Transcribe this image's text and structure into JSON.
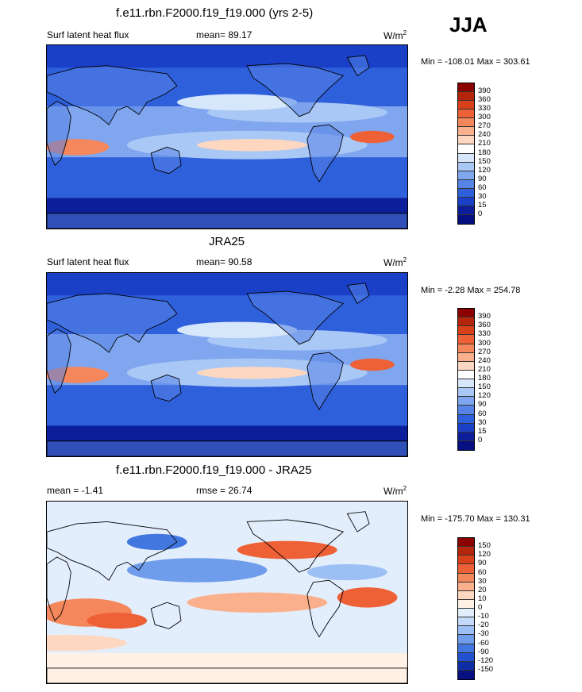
{
  "season": "JJA",
  "panels": [
    {
      "title": "f.e11.rbn.F2000.f19_f19.000 (yrs 2-5)",
      "left_label": "Surf latent heat flux",
      "mean_text": "mean=  89.17",
      "units": "W/m",
      "units_sup": "2",
      "minmax": "Min = -108.01 Max = 303.61",
      "colorbar": {
        "labels": [
          "390",
          "360",
          "330",
          "300",
          "270",
          "240",
          "210",
          "180",
          "150",
          "120",
          "90",
          "60",
          "30",
          "15",
          "0"
        ],
        "colors": [
          "#8b0000",
          "#b3260c",
          "#d8401a",
          "#ee6035",
          "#f5875c",
          "#fab08c",
          "#fdd7c0",
          "#ffffff",
          "#d6e6fb",
          "#aac8f5",
          "#7fa6ee",
          "#5584e6",
          "#2f60dc",
          "#1a40c8",
          "#0c1e9a",
          "#061080"
        ]
      },
      "map_kind": "flux"
    },
    {
      "title": "JRA25",
      "left_label": "Surf latent heat flux",
      "mean_text": "mean=  90.58",
      "units": "W/m",
      "units_sup": "2",
      "minmax": "Min =  -2.28 Max = 254.78",
      "colorbar": {
        "labels": [
          "390",
          "360",
          "330",
          "300",
          "270",
          "240",
          "210",
          "180",
          "150",
          "120",
          "90",
          "60",
          "30",
          "15",
          "0"
        ],
        "colors": [
          "#8b0000",
          "#b3260c",
          "#d8401a",
          "#ee6035",
          "#f5875c",
          "#fab08c",
          "#fdd7c0",
          "#ffffff",
          "#d6e6fb",
          "#aac8f5",
          "#7fa6ee",
          "#5584e6",
          "#2f60dc",
          "#1a40c8",
          "#0c1e9a",
          "#061080"
        ]
      },
      "map_kind": "flux"
    },
    {
      "title": "f.e11.rbn.F2000.f19_f19.000 - JRA25",
      "left_label": "mean =  -1.41",
      "mean_text": "rmse =  26.74",
      "units": "W/m",
      "units_sup": "2",
      "minmax": "Min = -175.70 Max = 130.31",
      "colorbar": {
        "labels": [
          "150",
          "120",
          "90",
          "60",
          "30",
          "20",
          "10",
          "0",
          "-10",
          "-20",
          "-30",
          "-60",
          "-90",
          "-120",
          "-150"
        ],
        "colors": [
          "#8b0000",
          "#b3260c",
          "#d8401a",
          "#ee6035",
          "#f5875c",
          "#fab08c",
          "#fdd7c0",
          "#fff1e6",
          "#e3eefc",
          "#c4dafa",
          "#9dc0f4",
          "#6f9deb",
          "#4277e0",
          "#2350d0",
          "#0e2ea8",
          "#061080"
        ]
      },
      "map_kind": "diff"
    }
  ]
}
